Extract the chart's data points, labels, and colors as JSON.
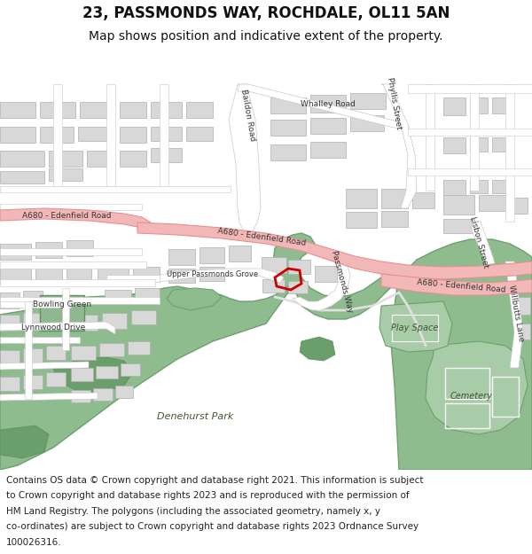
{
  "title_line1": "23, PASSMONDS WAY, ROCHDALE, OL11 5AN",
  "title_line2": "Map shows position and indicative extent of the property.",
  "footer_lines": [
    "Contains OS data © Crown copyright and database right 2021. This information is subject",
    "to Crown copyright and database rights 2023 and is reproduced with the permission of",
    "HM Land Registry. The polygons (including the associated geometry, namely x, y",
    "co-ordinates) are subject to Crown copyright and database rights 2023 Ordnance Survey",
    "100026316."
  ],
  "map_bg": "#e8e8e8",
  "road_color": "#ffffff",
  "road_ec": "#c8c8c8",
  "major_road_fill": "#f2b8b8",
  "major_road_ec": "#e89090",
  "green_fill": "#8fbc8f",
  "green_ec": "#6ea06e",
  "green_light_fill": "#a8cca8",
  "building_fill": "#d8d8d8",
  "building_ec": "#b0b0b0",
  "bowling_fill": "#90b890",
  "bowling_ec": "#609060",
  "plot_ec": "#cc0000",
  "white_path_ec": "#d0d0d0",
  "label_color": "#333333",
  "title_fs": 12,
  "sub_fs": 10,
  "footer_fs": 7.5,
  "road_lbl_fs": 7,
  "small_lbl_fs": 6.5
}
